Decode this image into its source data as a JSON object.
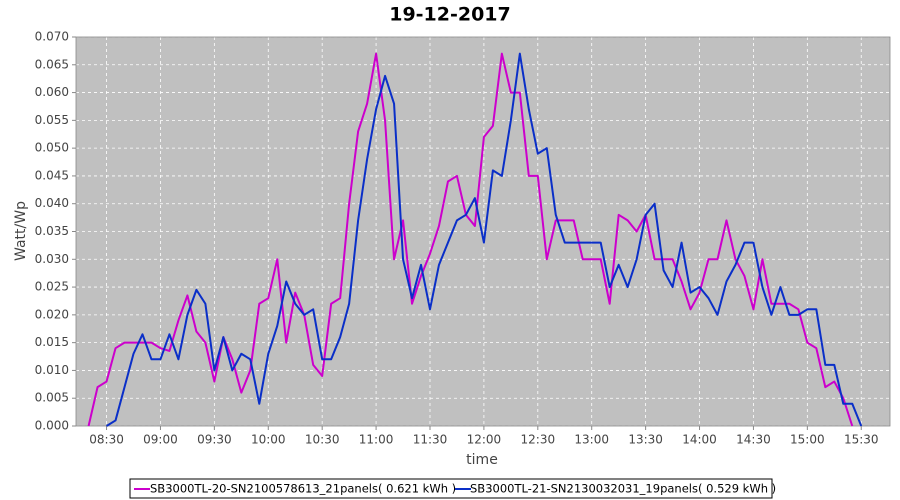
{
  "chart_data": {
    "type": "line",
    "title": "19-12-2017",
    "x_label": "time",
    "y_label": "Watt/Wp",
    "x": [
      "08:20",
      "08:25",
      "08:30",
      "08:35",
      "08:40",
      "08:45",
      "08:50",
      "08:55",
      "09:00",
      "09:05",
      "09:10",
      "09:15",
      "09:20",
      "09:25",
      "09:30",
      "09:35",
      "09:40",
      "09:45",
      "09:50",
      "09:55",
      "10:00",
      "10:05",
      "10:10",
      "10:15",
      "10:20",
      "10:25",
      "10:30",
      "10:35",
      "10:40",
      "10:45",
      "10:50",
      "10:55",
      "11:00",
      "11:05",
      "11:10",
      "11:15",
      "11:20",
      "11:25",
      "11:30",
      "11:35",
      "11:40",
      "11:45",
      "11:50",
      "11:55",
      "12:00",
      "12:05",
      "12:10",
      "12:15",
      "12:20",
      "12:25",
      "12:30",
      "12:35",
      "12:40",
      "12:45",
      "12:50",
      "12:55",
      "13:00",
      "13:05",
      "13:10",
      "13:15",
      "13:20",
      "13:25",
      "13:30",
      "13:35",
      "13:40",
      "13:45",
      "13:50",
      "13:55",
      "14:00",
      "14:05",
      "14:10",
      "14:15",
      "14:20",
      "14:25",
      "14:30",
      "14:35",
      "14:40",
      "14:45",
      "14:50",
      "14:55",
      "15:00",
      "15:05",
      "15:10",
      "15:15",
      "15:20",
      "15:25",
      "15:30"
    ],
    "series": [
      {
        "name": "SB3000TL-20-SN2100578613_21panels( 0.621 kWh )",
        "color": "#cc00cc",
        "values": [
          0,
          0.007,
          0.008,
          0.014,
          0.015,
          0.015,
          0.015,
          0.015,
          0.014,
          0.0135,
          0.019,
          0.0235,
          0.017,
          0.015,
          0.008,
          0.016,
          0.012,
          0.006,
          0.01,
          0.022,
          0.023,
          0.03,
          0.015,
          0.024,
          0.02,
          0.011,
          0.009,
          0.022,
          0.023,
          0.04,
          0.053,
          0.058,
          0.067,
          0.055,
          0.03,
          0.037,
          0.022,
          0.027,
          0.031,
          0.036,
          0.044,
          0.045,
          0.038,
          0.036,
          0.052,
          0.054,
          0.067,
          0.06,
          0.06,
          0.045,
          0.045,
          0.03,
          0.037,
          0.037,
          0.037,
          0.03,
          0.03,
          0.03,
          0.022,
          0.038,
          0.037,
          0.035,
          0.038,
          0.03,
          0.03,
          0.03,
          0.026,
          0.021,
          0.024,
          0.03,
          0.03,
          0.037,
          0.03,
          0.027,
          0.021,
          0.03,
          0.022,
          0.022,
          0.022,
          0.021,
          0.015,
          0.014,
          0.007,
          0.008,
          0.005,
          0,
          null
        ]
      },
      {
        "name": "SB3000TL-21-SN2130032031_19panels( 0.529 kWh )",
        "color": "#0a2fc8",
        "values": [
          null,
          null,
          0,
          0.001,
          0.007,
          0.013,
          0.0165,
          0.012,
          0.012,
          0.0165,
          0.012,
          0.02,
          0.0245,
          0.022,
          0.01,
          0.016,
          0.01,
          0.013,
          0.012,
          0.004,
          0.013,
          0.018,
          0.026,
          0.022,
          0.02,
          0.021,
          0.012,
          0.012,
          0.016,
          0.022,
          0.037,
          0.048,
          0.057,
          0.063,
          0.058,
          0.03,
          0.023,
          0.029,
          0.021,
          0.029,
          0.033,
          0.037,
          0.038,
          0.041,
          0.033,
          0.046,
          0.045,
          0.055,
          0.067,
          0.057,
          0.049,
          0.05,
          0.038,
          0.033,
          0.033,
          0.033,
          0.033,
          0.033,
          0.025,
          0.029,
          0.025,
          0.03,
          0.038,
          0.04,
          0.028,
          0.025,
          0.033,
          0.024,
          0.025,
          0.023,
          0.02,
          0.026,
          0.029,
          0.033,
          0.033,
          0.025,
          0.02,
          0.025,
          0.02,
          0.02,
          0.021,
          0.021,
          0.011,
          0.011,
          0.004,
          0.004,
          0
        ]
      }
    ],
    "xlim": [
      "08:13",
      "15:46"
    ],
    "xticks": [
      "08:30",
      "09:00",
      "09:30",
      "10:00",
      "10:30",
      "11:00",
      "11:30",
      "12:00",
      "12:30",
      "13:00",
      "13:30",
      "14:00",
      "14:30",
      "15:00",
      "15:30"
    ],
    "ylim": [
      0,
      0.07
    ],
    "yticks": [
      {
        "value": 0,
        "label": "0.000"
      },
      {
        "value": 0.005,
        "label": "0.005"
      },
      {
        "value": 0.01,
        "label": "0.010"
      },
      {
        "value": 0.015,
        "label": "0.015"
      },
      {
        "value": 0.02,
        "label": "0.020"
      },
      {
        "value": 0.025,
        "label": "0.025"
      },
      {
        "value": 0.03,
        "label": "0.030"
      },
      {
        "value": 0.035,
        "label": "0.035"
      },
      {
        "value": 0.04,
        "label": "0.040"
      },
      {
        "value": 0.045,
        "label": "0.045"
      },
      {
        "value": 0.05,
        "label": "0.050"
      },
      {
        "value": 0.055,
        "label": "0.055"
      },
      {
        "value": 0.06,
        "label": "0.060"
      },
      {
        "value": 0.065,
        "label": "0.065"
      },
      {
        "value": 0.07,
        "label": "0.070"
      }
    ],
    "grid": true
  }
}
